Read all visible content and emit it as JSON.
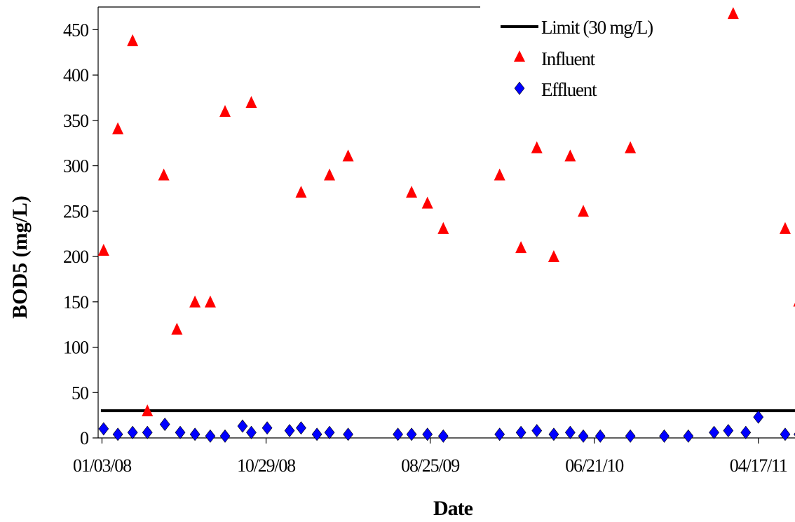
{
  "chart_data": {
    "type": "scatter",
    "xlabel": "Date",
    "ylabel": "BOD5 (mg/L)",
    "ylim": [
      0,
      475
    ],
    "yticks": [
      0,
      50,
      100,
      150,
      200,
      250,
      300,
      350,
      400,
      450
    ],
    "xlim": [
      "2007-12-27",
      "2011-06-23"
    ],
    "xticks": [
      "01/03/08",
      "10/29/08",
      "08/25/09",
      "06/21/10",
      "04/17/11"
    ],
    "xtick_dates": [
      "2008-01-03",
      "2008-10-29",
      "2009-08-25",
      "2010-06-21",
      "2011-04-17"
    ],
    "grid": false,
    "legend_position": "top-right",
    "limit_line": {
      "name": "Limit (30 mg/L)",
      "value": 30,
      "color": "#000000"
    },
    "series": [
      {
        "name": "Influent",
        "marker": "triangle",
        "color": "#ff0000",
        "points": [
          {
            "x": "2008-01-06",
            "y": 207
          },
          {
            "x": "2008-02-01",
            "y": 341
          },
          {
            "x": "2008-02-28",
            "y": 438
          },
          {
            "x": "2008-03-26",
            "y": 30
          },
          {
            "x": "2008-04-25",
            "y": 290
          },
          {
            "x": "2008-05-19",
            "y": 120
          },
          {
            "x": "2008-06-21",
            "y": 150
          },
          {
            "x": "2008-07-19",
            "y": 150
          },
          {
            "x": "2008-08-15",
            "y": 360
          },
          {
            "x": "2008-10-02",
            "y": 370
          },
          {
            "x": "2009-01-01",
            "y": 271
          },
          {
            "x": "2009-02-22",
            "y": 290
          },
          {
            "x": "2009-03-28",
            "y": 311
          },
          {
            "x": "2009-07-22",
            "y": 271
          },
          {
            "x": "2009-08-20",
            "y": 259
          },
          {
            "x": "2009-09-18",
            "y": 231
          },
          {
            "x": "2009-12-30",
            "y": 290
          },
          {
            "x": "2010-02-07",
            "y": 210
          },
          {
            "x": "2010-03-08",
            "y": 320
          },
          {
            "x": "2010-04-08",
            "y": 200
          },
          {
            "x": "2010-05-08",
            "y": 311
          },
          {
            "x": "2010-06-01",
            "y": 250
          },
          {
            "x": "2010-08-26",
            "y": 320
          },
          {
            "x": "2011-03-02",
            "y": 468
          },
          {
            "x": "2011-06-05",
            "y": 231
          },
          {
            "x": "2011-06-30",
            "y": 151
          }
        ]
      },
      {
        "name": "Effluent",
        "marker": "diamond",
        "color": "#0000ff",
        "points": [
          {
            "x": "2008-01-06",
            "y": 10
          },
          {
            "x": "2008-02-01",
            "y": 4
          },
          {
            "x": "2008-02-28",
            "y": 6
          },
          {
            "x": "2008-03-26",
            "y": 6
          },
          {
            "x": "2008-04-27",
            "y": 15
          },
          {
            "x": "2008-05-25",
            "y": 6
          },
          {
            "x": "2008-06-21",
            "y": 4
          },
          {
            "x": "2008-07-19",
            "y": 2
          },
          {
            "x": "2008-08-15",
            "y": 2
          },
          {
            "x": "2008-09-16",
            "y": 13
          },
          {
            "x": "2008-10-02",
            "y": 6
          },
          {
            "x": "2008-10-31",
            "y": 11
          },
          {
            "x": "2008-12-11",
            "y": 8
          },
          {
            "x": "2009-01-01",
            "y": 11
          },
          {
            "x": "2009-01-30",
            "y": 4
          },
          {
            "x": "2009-02-22",
            "y": 6
          },
          {
            "x": "2009-03-28",
            "y": 4
          },
          {
            "x": "2009-06-27",
            "y": 4
          },
          {
            "x": "2009-07-22",
            "y": 4
          },
          {
            "x": "2009-08-20",
            "y": 4
          },
          {
            "x": "2009-09-18",
            "y": 2
          },
          {
            "x": "2009-12-30",
            "y": 4
          },
          {
            "x": "2010-02-07",
            "y": 6
          },
          {
            "x": "2010-03-08",
            "y": 8
          },
          {
            "x": "2010-04-08",
            "y": 4
          },
          {
            "x": "2010-05-08",
            "y": 6
          },
          {
            "x": "2010-06-01",
            "y": 2
          },
          {
            "x": "2010-07-02",
            "y": 2
          },
          {
            "x": "2010-08-26",
            "y": 2
          },
          {
            "x": "2010-10-27",
            "y": 2
          },
          {
            "x": "2010-12-10",
            "y": 2
          },
          {
            "x": "2011-01-26",
            "y": 6
          },
          {
            "x": "2011-02-21",
            "y": 8
          },
          {
            "x": "2011-03-25",
            "y": 6
          },
          {
            "x": "2011-04-17",
            "y": 23
          },
          {
            "x": "2011-06-05",
            "y": 4
          },
          {
            "x": "2011-06-30",
            "y": 4
          }
        ]
      }
    ]
  }
}
